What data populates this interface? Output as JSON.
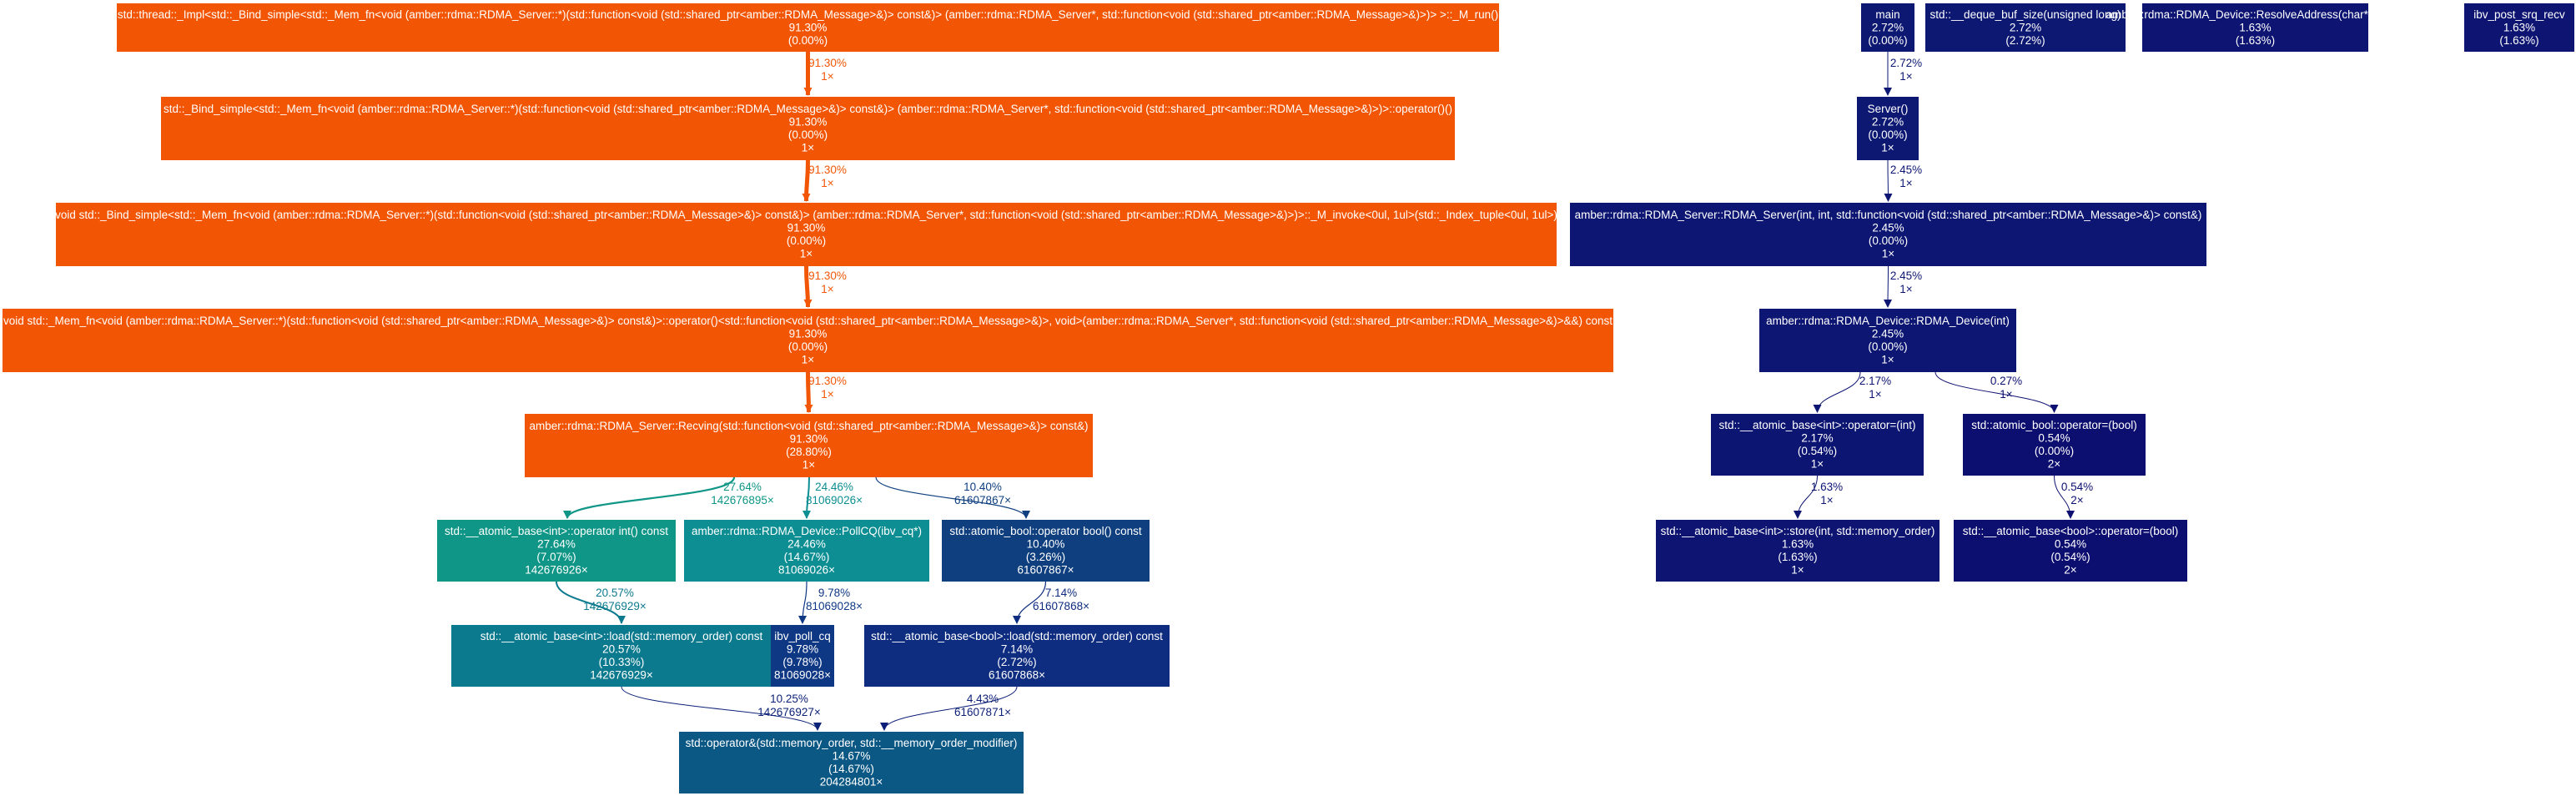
{
  "nodes": [
    {
      "id": "n_mrun",
      "color": "#f25605",
      "lines": [
        "std::thread::_Impl<std::_Bind_simple<std::_Mem_fn<void (amber::rdma::RDMA_Server::*)(std::function<void (std::shared_ptr<amber::RDMA_Message>&)> const&)> (amber::rdma::RDMA_Server*, std::function<void (std::shared_ptr<amber::RDMA_Message>&)>)> >::_M_run()",
        "91.30%",
        "(0.00%)"
      ]
    },
    {
      "id": "n_bindop",
      "color": "#f25605",
      "lines": [
        "std::_Bind_simple<std::_Mem_fn<void (amber::rdma::RDMA_Server::*)(std::function<void (std::shared_ptr<amber::RDMA_Message>&)> const&)> (amber::rdma::RDMA_Server*, std::function<void (std::shared_ptr<amber::RDMA_Message>&)>)>::operator()()",
        "91.30%",
        "(0.00%)",
        "1×"
      ]
    },
    {
      "id": "n_invoke",
      "color": "#f25605",
      "lines": [
        "void std::_Bind_simple<std::_Mem_fn<void (amber::rdma::RDMA_Server::*)(std::function<void (std::shared_ptr<amber::RDMA_Message>&)> const&)> (amber::rdma::RDMA_Server*, std::function<void (std::shared_ptr<amber::RDMA_Message>&)>)>::_M_invoke<0ul, 1ul>(std::_Index_tuple<0ul, 1ul>)",
        "91.30%",
        "(0.00%)",
        "1×"
      ]
    },
    {
      "id": "n_memfn",
      "color": "#f25605",
      "lines": [
        "void std::_Mem_fn<void (amber::rdma::RDMA_Server::*)(std::function<void (std::shared_ptr<amber::RDMA_Message>&)> const&)>::operator()<std::function<void (std::shared_ptr<amber::RDMA_Message>&)>, void>(amber::rdma::RDMA_Server*, std::function<void (std::shared_ptr<amber::RDMA_Message>&)>&&) const",
        "91.30%",
        "(0.00%)",
        "1×"
      ]
    },
    {
      "id": "n_recving",
      "color": "#f25605",
      "lines": [
        "amber::rdma::RDMA_Server::Recving(std::function<void (std::shared_ptr<amber::RDMA_Message>&)> const&)",
        "91.30%",
        "(28.80%)",
        "1×"
      ]
    },
    {
      "id": "n_atomicint",
      "color": "#0f9686",
      "lines": [
        "std::__atomic_base<int>::operator int() const",
        "27.64%",
        "(7.07%)",
        "142676926×"
      ]
    },
    {
      "id": "n_pollcq",
      "color": "#0c8e93",
      "lines": [
        "amber::rdma::RDMA_Device::PollCQ(ibv_cq*)",
        "24.46%",
        "(14.67%)",
        "81069026×"
      ]
    },
    {
      "id": "n_atomicbool",
      "color": "#0f3f7f",
      "lines": [
        "std::atomic_bool::operator bool() const",
        "10.40%",
        "(3.26%)",
        "61607867×"
      ]
    },
    {
      "id": "n_loadint",
      "color": "#0c7a8e",
      "lines": [
        "std::__atomic_base<int>::load(std::memory_order) const",
        "20.57%",
        "(10.33%)",
        "142676929×"
      ]
    },
    {
      "id": "n_ibvpoll",
      "color": "#0e3784",
      "lines": [
        "ibv_poll_cq",
        "9.78%",
        "(9.78%)",
        "81069028×"
      ]
    },
    {
      "id": "n_loadbool",
      "color": "#0e2c80",
      "lines": [
        "std::__atomic_base<bool>::load(std::memory_order) const",
        "7.14%",
        "(2.72%)",
        "61607868×"
      ]
    },
    {
      "id": "n_opand",
      "color": "#0c5884",
      "lines": [
        "std::operator&(std::memory_order, std::__memory_order_modifier)",
        "14.67%",
        "(14.67%)",
        "204284801×"
      ]
    },
    {
      "id": "n_main",
      "color": "#0d1873",
      "lines": [
        "main",
        "2.72%",
        "(0.00%)"
      ]
    },
    {
      "id": "n_deque",
      "color": "#0d1873",
      "lines": [
        "std::__deque_buf_size(unsigned long)",
        "2.72%",
        "(2.72%)"
      ]
    },
    {
      "id": "n_resolve",
      "color": "#0d1472",
      "lines": [
        "amber::rdma::RDMA_Device::ResolveAddress(char*, char*)",
        "1.63%",
        "(1.63%)"
      ]
    },
    {
      "id": "n_ibvpost",
      "color": "#0d1472",
      "lines": [
        "ibv_post_srq_recv",
        "1.63%",
        "(1.63%)"
      ]
    },
    {
      "id": "n_server",
      "color": "#0d1873",
      "lines": [
        "Server()",
        "2.72%",
        "(0.00%)",
        "1×"
      ]
    },
    {
      "id": "n_rdmaserver",
      "color": "#0d1773",
      "lines": [
        "amber::rdma::RDMA_Server::RDMA_Server(int, int, std::function<void (std::shared_ptr<amber::RDMA_Message>&)> const&)",
        "2.45%",
        "(0.00%)",
        "1×"
      ]
    },
    {
      "id": "n_rdmadevice",
      "color": "#0d1773",
      "lines": [
        "amber::rdma::RDMA_Device::RDMA_Device(int)",
        "2.45%",
        "(0.00%)",
        "1×"
      ]
    },
    {
      "id": "n_opassignint",
      "color": "#0d1573",
      "lines": [
        "std::__atomic_base<int>::operator=(int)",
        "2.17%",
        "(0.54%)",
        "1×"
      ]
    },
    {
      "id": "n_opassignbool",
      "color": "#0d0f70",
      "lines": [
        "std::atomic_bool::operator=(bool)",
        "0.54%",
        "(0.00%)",
        "2×"
      ]
    },
    {
      "id": "n_store",
      "color": "#0d1472",
      "lines": [
        "std::__atomic_base<int>::store(int, std::memory_order)",
        "1.63%",
        "(1.63%)",
        "1×"
      ]
    },
    {
      "id": "n_baseboolassign",
      "color": "#0d0f70",
      "lines": [
        "std::__atomic_base<bool>::operator=(bool)",
        "0.54%",
        "(0.54%)",
        "2×"
      ]
    }
  ],
  "edges": [
    {
      "from": "n_mrun",
      "to": "n_bindop",
      "color": "#f25605",
      "percent": "91.30%",
      "calls": "1×"
    },
    {
      "from": "n_bindop",
      "to": "n_invoke",
      "color": "#f25605",
      "percent": "91.30%",
      "calls": "1×"
    },
    {
      "from": "n_invoke",
      "to": "n_memfn",
      "color": "#f25605",
      "percent": "91.30%",
      "calls": "1×"
    },
    {
      "from": "n_memfn",
      "to": "n_recving",
      "color": "#f25605",
      "percent": "91.30%",
      "calls": "1×"
    },
    {
      "from": "n_recving",
      "to": "n_atomicint",
      "color": "#0f9686",
      "percent": "27.64%",
      "calls": "142676895×"
    },
    {
      "from": "n_recving",
      "to": "n_pollcq",
      "color": "#0c8e93",
      "percent": "24.46%",
      "calls": "81069026×"
    },
    {
      "from": "n_recving",
      "to": "n_atomicbool",
      "color": "#0f3f7f",
      "percent": "10.40%",
      "calls": "61607867×"
    },
    {
      "from": "n_atomicint",
      "to": "n_loadint",
      "color": "#0c7a8e",
      "percent": "20.57%",
      "calls": "142676929×"
    },
    {
      "from": "n_pollcq",
      "to": "n_ibvpoll",
      "color": "#0e3784",
      "percent": "9.78%",
      "calls": "81069028×"
    },
    {
      "from": "n_atomicbool",
      "to": "n_loadbool",
      "color": "#0e2c80",
      "percent": "7.14%",
      "calls": "61607868×"
    },
    {
      "from": "n_loadint",
      "to": "n_opand",
      "color": "#0d2378",
      "percent": "10.25%",
      "calls": "142676927×"
    },
    {
      "from": "n_loadbool",
      "to": "n_opand",
      "color": "#0d1f78",
      "percent": "4.43%",
      "calls": "61607871×"
    },
    {
      "from": "n_main",
      "to": "n_server",
      "color": "#0d1873",
      "percent": "2.72%",
      "calls": "1×"
    },
    {
      "from": "n_server",
      "to": "n_rdmaserver",
      "color": "#0d1773",
      "percent": "2.45%",
      "calls": "1×"
    },
    {
      "from": "n_rdmaserver",
      "to": "n_rdmadevice",
      "color": "#0d1773",
      "percent": "2.45%",
      "calls": "1×"
    },
    {
      "from": "n_rdmadevice",
      "to": "n_opassignint",
      "color": "#0d1573",
      "percent": "2.17%",
      "calls": "1×"
    },
    {
      "from": "n_rdmadevice",
      "to": "n_opassignbool",
      "color": "#0d0f70",
      "percent": "0.27%",
      "calls": "1×"
    },
    {
      "from": "n_opassignint",
      "to": "n_store",
      "color": "#0d1472",
      "percent": "1.63%",
      "calls": "1×"
    },
    {
      "from": "n_opassignbool",
      "to": "n_baseboolassign",
      "color": "#0d0f70",
      "percent": "0.54%",
      "calls": "2×"
    }
  ]
}
